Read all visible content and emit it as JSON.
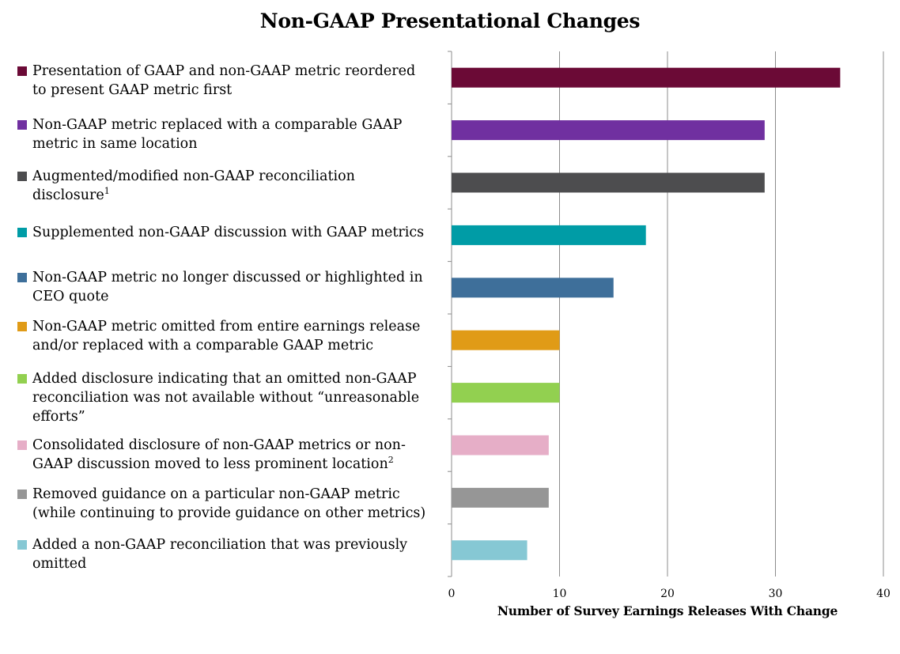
{
  "chart_data": {
    "type": "bar",
    "orientation": "horizontal",
    "title": "Non-GAAP Presentational Changes",
    "xlabel": "Number of Survey Earnings Releases With Change",
    "xlim": [
      0,
      40
    ],
    "xticks": [
      "0",
      "10",
      "20",
      "30",
      "40"
    ],
    "grid": "vertical",
    "legend_position": "left",
    "categories": [
      {
        "label": "Presentation of GAAP and non-GAAP metric reordered to present GAAP metric first",
        "sup": "",
        "value": 36,
        "color": "#6b0a36"
      },
      {
        "label": "Non-GAAP metric replaced with a comparable GAAP metric in same location",
        "sup": "",
        "value": 29,
        "color": "#7030a0"
      },
      {
        "label": "Augmented/modified non-GAAP reconciliation disclosure",
        "sup": "1",
        "value": 29,
        "color": "#4d4d4f"
      },
      {
        "label": "Supplemented non-GAAP discussion with GAAP metrics",
        "sup": "",
        "value": 18,
        "color": "#009ca6"
      },
      {
        "label": "Non-GAAP metric no longer discussed or highlighted in CEO quote",
        "sup": "",
        "value": 15,
        "color": "#3e6f9a"
      },
      {
        "label": "Non-GAAP metric omitted from entire earnings release and/or replaced with a comparable GAAP metric",
        "sup": "",
        "value": 10,
        "color": "#e09b17"
      },
      {
        "label": "Added disclosure indicating that an omitted non-GAAP reconciliation was not available without “unreasonable efforts”",
        "sup": "",
        "value": 10,
        "color": "#92d050"
      },
      {
        "label": "Consolidated disclosure of non-GAAP metrics or non-GAAP discussion moved to less prominent location",
        "sup": "2",
        "value": 9,
        "color": "#e6aec7"
      },
      {
        "label": "Removed guidance on a particular non-GAAP metric (while continuing to provide guidance on other metrics)",
        "sup": "",
        "value": 9,
        "color": "#969696"
      },
      {
        "label": "Added a non-GAAP reconciliation that was previously omitted",
        "sup": "",
        "value": 7,
        "color": "#86c8d4"
      }
    ]
  }
}
